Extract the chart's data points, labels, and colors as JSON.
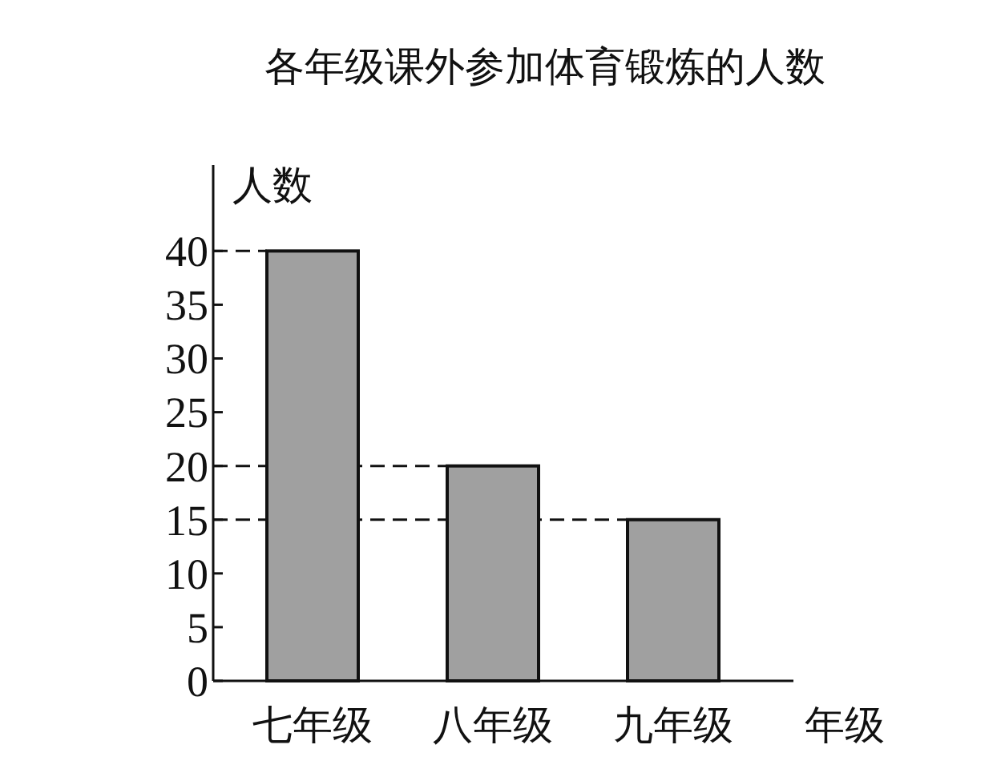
{
  "chart_data": {
    "type": "bar",
    "title": "各年级课外参加体育锻炼的人数",
    "xlabel": "年级",
    "ylabel": "人数",
    "categories": [
      "七年级",
      "八年级",
      "九年级"
    ],
    "values": [
      40,
      20,
      15
    ],
    "color": "#a0a0a0",
    "ylim": [
      0,
      48
    ],
    "yticks": [
      0,
      5,
      10,
      15,
      20,
      25,
      30,
      35,
      40
    ],
    "grid": false,
    "ref_lines": [
      {
        "axis": "y",
        "value": 40,
        "line_style": "dashed"
      },
      {
        "axis": "y",
        "value": 20,
        "line_style": "dashed"
      },
      {
        "axis": "y",
        "value": 15,
        "line_style": "dashed"
      }
    ]
  }
}
